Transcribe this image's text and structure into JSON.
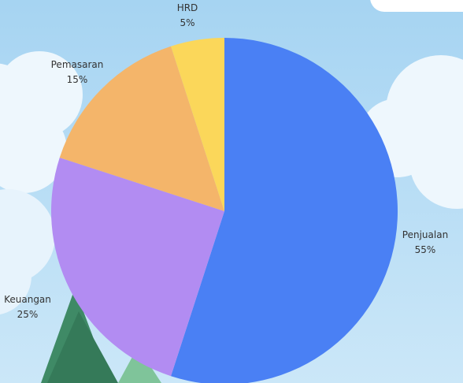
{
  "chart_data": {
    "type": "pie",
    "slices": [
      {
        "label": "Penjualan",
        "value": 55,
        "value_label": "55%",
        "color": "#4a80f4"
      },
      {
        "label": "Keuangan",
        "value": 25,
        "value_label": "25%",
        "color": "#b28cf2"
      },
      {
        "label": "Pemasaran",
        "value": 15,
        "value_label": "15%",
        "color": "#f4b56a"
      },
      {
        "label": "HRD",
        "value": 5,
        "value_label": "5%",
        "color": "#fbd75a"
      }
    ],
    "start_angle": "12 o'clock",
    "direction": "clockwise",
    "legend": "none"
  },
  "background": {
    "sky_top": "#a6d4f2",
    "sky_bottom": "#cbe7f8",
    "cloud": "#eef7fd",
    "tree": "#3f8a66"
  }
}
